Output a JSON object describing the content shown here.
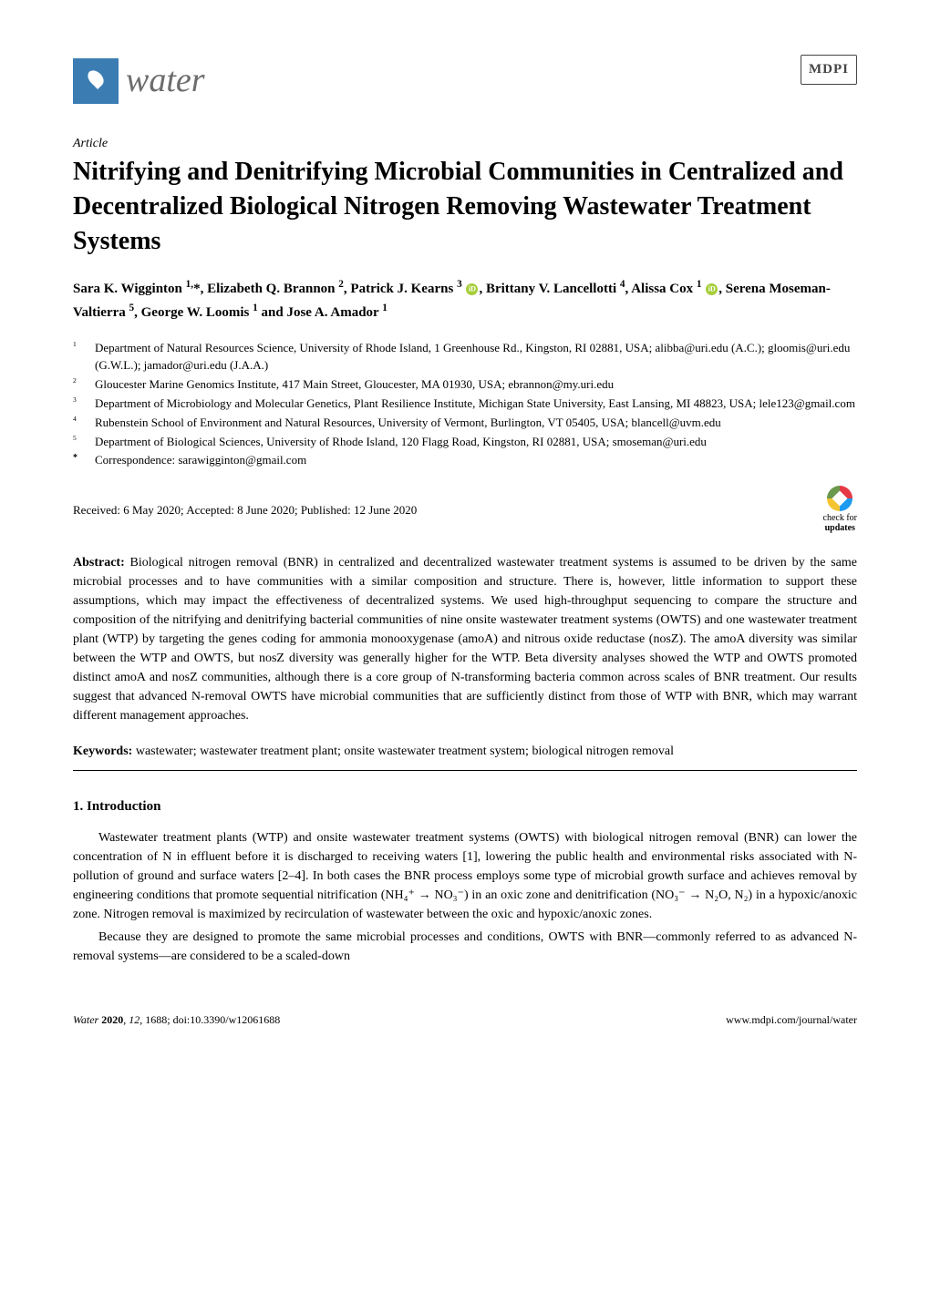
{
  "header": {
    "journal_name": "water",
    "publisher_logo": "MDPI"
  },
  "article_type": "Article",
  "title": "Nitrifying and Denitrifying Microbial Communities in Centralized and Decentralized Biological Nitrogen Removing Wastewater Treatment Systems",
  "authors_html": "Sara K. Wigginton <sup>1,</sup>*, Elizabeth Q. Brannon <sup>2</sup>, Patrick J. Kearns <sup>3</sup> <span class='orcid'></span>, Brittany V. Lancellotti <sup>4</sup>, Alissa Cox <sup>1</sup> <span class='orcid'></span>, Serena Moseman-Valtierra <sup>5</sup>, George W. Loomis <sup>1</sup> and Jose A. Amador <sup>1</sup>",
  "affiliations": [
    {
      "num": "1",
      "text": "Department of Natural Resources Science, University of Rhode Island, 1 Greenhouse Rd., Kingston, RI 02881, USA; alibba@uri.edu (A.C.); gloomis@uri.edu (G.W.L.); jamador@uri.edu (J.A.A.)"
    },
    {
      "num": "2",
      "text": "Gloucester Marine Genomics Institute, 417 Main Street, Gloucester, MA 01930, USA; ebrannon@my.uri.edu"
    },
    {
      "num": "3",
      "text": "Department of Microbiology and Molecular Genetics, Plant Resilience Institute, Michigan State University, East Lansing, MI 48823, USA; lele123@gmail.com"
    },
    {
      "num": "4",
      "text": "Rubenstein School of Environment and Natural Resources, University of Vermont, Burlington, VT 05405, USA; blancell@uvm.edu"
    },
    {
      "num": "5",
      "text": "Department of Biological Sciences, University of Rhode Island, 120 Flagg Road, Kingston, RI 02881, USA; smoseman@uri.edu"
    },
    {
      "num": "*",
      "text": "Correspondence: sarawigginton@gmail.com"
    }
  ],
  "dates": "Received: 6 May 2020; Accepted: 8 June 2020; Published: 12 June 2020",
  "check_updates": {
    "line1": "check for",
    "line2": "updates"
  },
  "abstract_label": "Abstract:",
  "abstract": " Biological nitrogen removal (BNR) in centralized and decentralized wastewater treatment systems is assumed to be driven by the same microbial processes and to have communities with a similar composition and structure. There is, however, little information to support these assumptions, which may impact the effectiveness of decentralized systems. We used high-throughput sequencing to compare the structure and composition of the nitrifying and denitrifying bacterial communities of nine onsite wastewater treatment systems (OWTS) and one wastewater treatment plant (WTP) by targeting the genes coding for ammonia monooxygenase (amoA) and nitrous oxide reductase (nosZ). The amoA diversity was similar between the WTP and OWTS, but nosZ diversity was generally higher for the WTP. Beta diversity analyses showed the WTP and OWTS promoted distinct amoA and nosZ communities, although there is a core group of N-transforming bacteria common across scales of BNR treatment. Our results suggest that advanced N-removal OWTS have microbial communities that are sufficiently distinct from those of WTP with BNR, which may warrant different management approaches.",
  "keywords_label": "Keywords:",
  "keywords": " wastewater; wastewater treatment plant; onsite wastewater treatment system; biological nitrogen removal",
  "section_heading": "1. Introduction",
  "paragraphs": [
    "Wastewater treatment plants (WTP) and onsite wastewater treatment systems (OWTS) with biological nitrogen removal (BNR) can lower the concentration of N in effluent before it is discharged to receiving waters [1], lowering the public health and environmental risks associated with N-pollution of ground and surface waters [2–4]. In both cases the BNR process employs some type of microbial growth surface and achieves removal by engineering conditions that promote sequential nitrification (NH₄⁺ → NO₃⁻) in an oxic zone and denitrification (NO₃⁻ → N₂O, N₂) in a hypoxic/anoxic zone. Nitrogen removal is maximized by recirculation of wastewater between the oxic and hypoxic/anoxic zones.",
    "Because they are designed to promote the same microbial processes and conditions, OWTS with BNR—commonly referred to as advanced N-removal systems—are considered to be a scaled-down"
  ],
  "footer": {
    "left": "Water 2020, 12, 1688; doi:10.3390/w12061688",
    "right": "www.mdpi.com/journal/water"
  },
  "colors": {
    "logo_bg": "#3b7db3",
    "journal_name_color": "#6d6d6d",
    "orcid_bg": "#a6ce39",
    "text": "#000000",
    "background": "#ffffff"
  },
  "typography": {
    "title_fontsize": 28,
    "body_fontsize": 14,
    "authors_fontsize": 15,
    "affil_fontsize": 13,
    "footer_fontsize": 12
  }
}
